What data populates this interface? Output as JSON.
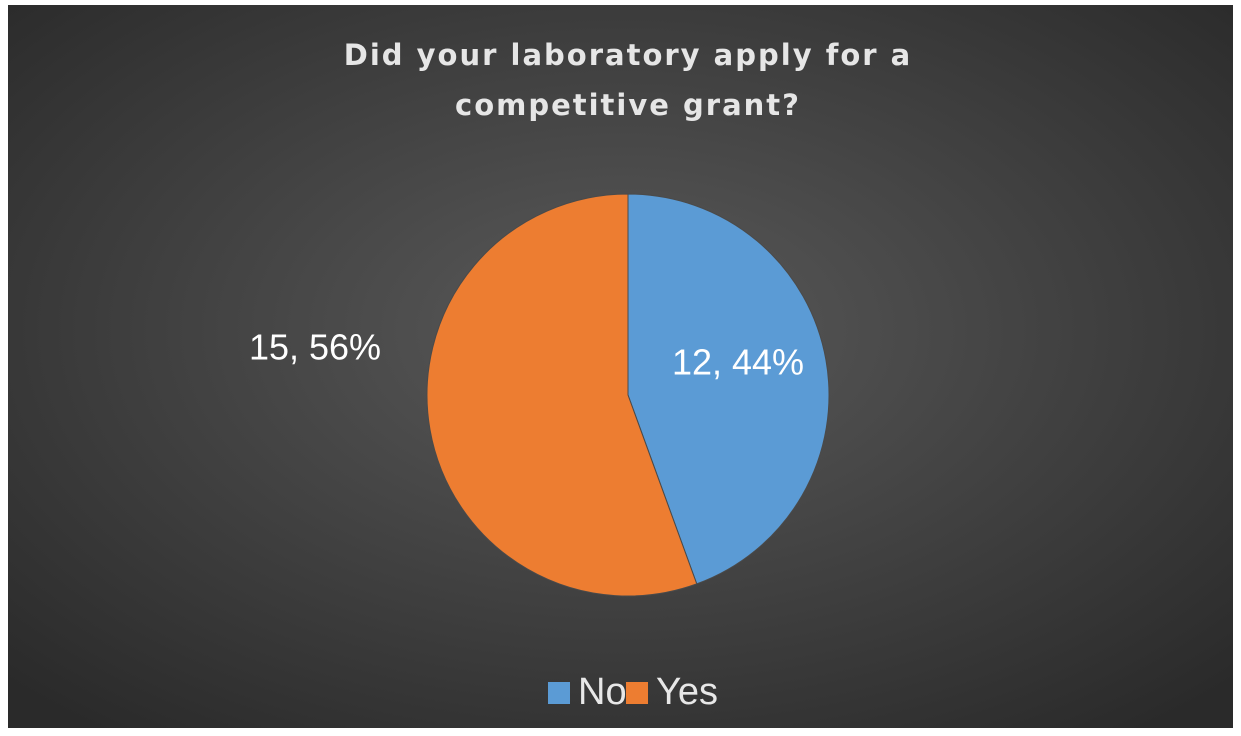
{
  "chart_data": {
    "type": "pie",
    "title": "Did your laboratory apply for a competitive grant?",
    "categories": [
      "No",
      "Yes"
    ],
    "values": [
      12,
      15
    ],
    "value_labels": [
      "12, 44%",
      "15, 56%"
    ],
    "colors": [
      "#5b9bd5",
      "#ed7d31"
    ],
    "legend": "bottom"
  }
}
